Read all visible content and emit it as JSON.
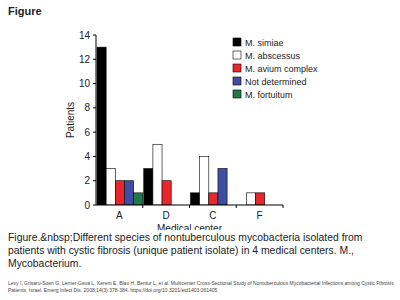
{
  "chart_data": {
    "type": "bar",
    "title": "Figure",
    "x_label": "Medical center",
    "y_label": "Patients",
    "categories": [
      "A",
      "D",
      "C",
      "F"
    ],
    "series": [
      {
        "name": "M. simiae",
        "color": "#000000",
        "values": [
          13,
          3,
          1,
          0
        ]
      },
      {
        "name": "M. abscessus",
        "color": "#ffffff",
        "values": [
          3,
          5,
          4,
          1
        ]
      },
      {
        "name": "M. avium complex",
        "color": "#e8262b",
        "values": [
          2,
          2,
          1,
          1
        ]
      },
      {
        "name": "Not determined",
        "color": "#3f4ea3",
        "values": [
          2,
          0,
          3,
          0
        ]
      },
      {
        "name": "M. fortuitum",
        "color": "#1f7a4a",
        "values": [
          1,
          0,
          0,
          0
        ]
      }
    ],
    "ylim": [
      0,
      14
    ],
    "yticks": [
      0,
      2,
      4,
      6,
      8,
      10,
      12,
      14
    ],
    "grid": false,
    "legend": "upper-right",
    "caption": "Figure.&nbsp;Different species of nontuberculous mycobacteria isolated from patients with cystic fibrosis (unique patient isolate) in 4 medical centers. M., Mycobacterium.",
    "source": "Levy I, Grisaru-Soen G, Lerner-Geva L, Kerem E, Blau H, Bentur L, et al. Multicenter Cross-Sectional Study of Nontuberculous Mycobacterial Infections among Cystic Fibrosis Patients, Israel. Emerg Infect Dis. 2008;14(3):378-384. https://doi.org/10.3201/eid1403.061405"
  }
}
